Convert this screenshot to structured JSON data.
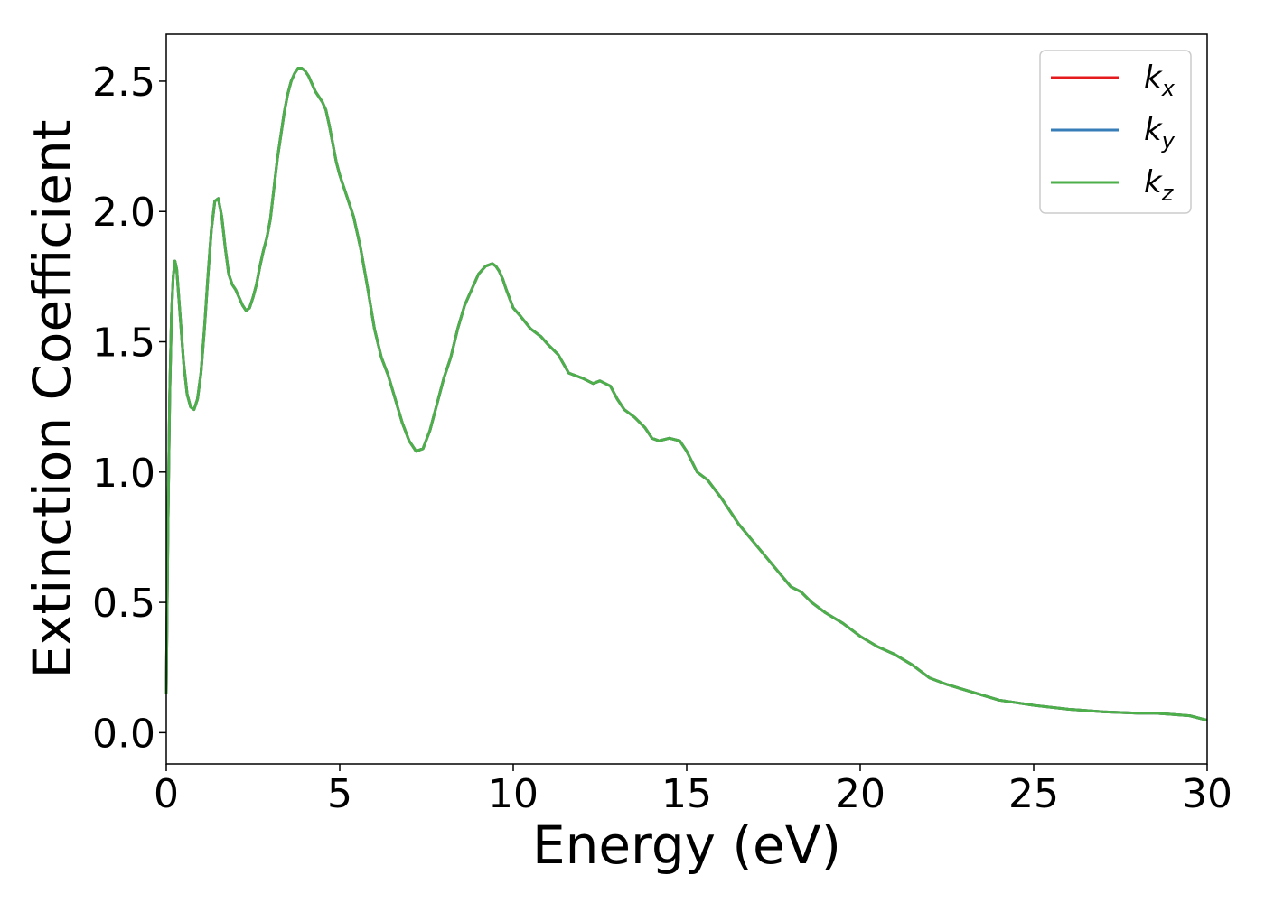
{
  "chart_data": {
    "type": "line",
    "title": "",
    "xlabel": "Energy (eV)",
    "ylabel": "Extinction Coefficient",
    "xlim": [
      0,
      30
    ],
    "ylim": [
      -0.12,
      2.68
    ],
    "xticks": [
      0,
      5,
      10,
      15,
      20,
      25,
      30
    ],
    "xtick_labels": [
      "0",
      "5",
      "10",
      "15",
      "20",
      "25",
      "30"
    ],
    "yticks": [
      0.0,
      0.5,
      1.0,
      1.5,
      2.0,
      2.5
    ],
    "ytick_labels": [
      "0.0",
      "0.5",
      "1.0",
      "1.5",
      "2.0",
      "2.5"
    ],
    "grid": false,
    "legend_position": "top-right",
    "x": [
      0.0,
      0.05,
      0.1,
      0.15,
      0.2,
      0.25,
      0.3,
      0.4,
      0.5,
      0.6,
      0.7,
      0.8,
      0.9,
      1.0,
      1.1,
      1.2,
      1.3,
      1.4,
      1.5,
      1.6,
      1.7,
      1.8,
      1.9,
      2.0,
      2.1,
      2.2,
      2.3,
      2.4,
      2.5,
      2.6,
      2.7,
      2.8,
      2.9,
      3.0,
      3.2,
      3.4,
      3.5,
      3.6,
      3.7,
      3.8,
      3.9,
      4.0,
      4.1,
      4.2,
      4.3,
      4.4,
      4.5,
      4.6,
      4.7,
      4.8,
      4.9,
      5.0,
      5.2,
      5.4,
      5.6,
      5.8,
      6.0,
      6.2,
      6.4,
      6.6,
      6.8,
      7.0,
      7.2,
      7.4,
      7.6,
      7.8,
      8.0,
      8.2,
      8.4,
      8.6,
      8.8,
      9.0,
      9.2,
      9.4,
      9.5,
      9.6,
      9.7,
      9.8,
      10.0,
      10.2,
      10.5,
      10.8,
      11.0,
      11.3,
      11.6,
      11.8,
      12.0,
      12.3,
      12.5,
      12.8,
      13.0,
      13.2,
      13.5,
      13.8,
      14.0,
      14.2,
      14.5,
      14.8,
      15.0,
      15.3,
      15.6,
      16.0,
      16.5,
      17.0,
      17.5,
      18.0,
      18.3,
      18.6,
      19.0,
      19.5,
      20.0,
      20.5,
      21.0,
      21.5,
      22.0,
      22.5,
      23.0,
      24.0,
      25.0,
      26.0,
      27.0,
      28.0,
      28.5,
      29.0,
      29.5,
      30.0
    ],
    "series": [
      {
        "name": "k_x",
        "legend_main": "k",
        "legend_sub": "x",
        "color": "#e41a1c",
        "values": [
          0.15,
          0.8,
          1.3,
          1.6,
          1.75,
          1.81,
          1.78,
          1.6,
          1.42,
          1.3,
          1.25,
          1.24,
          1.28,
          1.38,
          1.55,
          1.75,
          1.93,
          2.04,
          2.05,
          1.98,
          1.86,
          1.76,
          1.72,
          1.7,
          1.67,
          1.64,
          1.62,
          1.63,
          1.67,
          1.72,
          1.79,
          1.85,
          1.9,
          1.97,
          2.2,
          2.38,
          2.45,
          2.5,
          2.53,
          2.55,
          2.55,
          2.54,
          2.52,
          2.49,
          2.46,
          2.44,
          2.42,
          2.39,
          2.33,
          2.26,
          2.19,
          2.14,
          2.06,
          1.98,
          1.86,
          1.71,
          1.55,
          1.44,
          1.37,
          1.28,
          1.19,
          1.12,
          1.08,
          1.09,
          1.16,
          1.26,
          1.36,
          1.44,
          1.55,
          1.64,
          1.7,
          1.76,
          1.79,
          1.8,
          1.79,
          1.77,
          1.74,
          1.7,
          1.63,
          1.6,
          1.55,
          1.52,
          1.49,
          1.45,
          1.38,
          1.37,
          1.36,
          1.34,
          1.35,
          1.33,
          1.28,
          1.24,
          1.21,
          1.17,
          1.13,
          1.12,
          1.13,
          1.12,
          1.08,
          1.0,
          0.97,
          0.9,
          0.8,
          0.72,
          0.64,
          0.56,
          0.54,
          0.5,
          0.46,
          0.42,
          0.37,
          0.33,
          0.3,
          0.26,
          0.21,
          0.185,
          0.165,
          0.125,
          0.105,
          0.09,
          0.08,
          0.075,
          0.075,
          0.07,
          0.065,
          0.048
        ]
      },
      {
        "name": "k_y",
        "legend_main": "k",
        "legend_sub": "y",
        "color": "#377eb8",
        "values": [
          0.15,
          0.8,
          1.3,
          1.6,
          1.75,
          1.81,
          1.78,
          1.6,
          1.42,
          1.3,
          1.25,
          1.24,
          1.28,
          1.38,
          1.55,
          1.75,
          1.93,
          2.04,
          2.05,
          1.98,
          1.86,
          1.76,
          1.72,
          1.7,
          1.67,
          1.64,
          1.62,
          1.63,
          1.67,
          1.72,
          1.79,
          1.85,
          1.9,
          1.97,
          2.2,
          2.38,
          2.45,
          2.5,
          2.53,
          2.55,
          2.55,
          2.54,
          2.52,
          2.49,
          2.46,
          2.44,
          2.42,
          2.39,
          2.33,
          2.26,
          2.19,
          2.14,
          2.06,
          1.98,
          1.86,
          1.71,
          1.55,
          1.44,
          1.37,
          1.28,
          1.19,
          1.12,
          1.08,
          1.09,
          1.16,
          1.26,
          1.36,
          1.44,
          1.55,
          1.64,
          1.7,
          1.76,
          1.79,
          1.8,
          1.79,
          1.77,
          1.74,
          1.7,
          1.63,
          1.6,
          1.55,
          1.52,
          1.49,
          1.45,
          1.38,
          1.37,
          1.36,
          1.34,
          1.35,
          1.33,
          1.28,
          1.24,
          1.21,
          1.17,
          1.13,
          1.12,
          1.13,
          1.12,
          1.08,
          1.0,
          0.97,
          0.9,
          0.8,
          0.72,
          0.64,
          0.56,
          0.54,
          0.5,
          0.46,
          0.42,
          0.37,
          0.33,
          0.3,
          0.26,
          0.21,
          0.185,
          0.165,
          0.125,
          0.105,
          0.09,
          0.08,
          0.075,
          0.075,
          0.07,
          0.065,
          0.048
        ]
      },
      {
        "name": "k_z",
        "legend_main": "k",
        "legend_sub": "z",
        "color": "#4daf4a",
        "values": [
          0.15,
          0.8,
          1.3,
          1.6,
          1.75,
          1.81,
          1.78,
          1.6,
          1.42,
          1.3,
          1.25,
          1.24,
          1.28,
          1.38,
          1.55,
          1.75,
          1.93,
          2.04,
          2.05,
          1.98,
          1.86,
          1.76,
          1.72,
          1.7,
          1.67,
          1.64,
          1.62,
          1.63,
          1.67,
          1.72,
          1.79,
          1.85,
          1.9,
          1.97,
          2.2,
          2.38,
          2.45,
          2.5,
          2.53,
          2.55,
          2.55,
          2.54,
          2.52,
          2.49,
          2.46,
          2.44,
          2.42,
          2.39,
          2.33,
          2.26,
          2.19,
          2.14,
          2.06,
          1.98,
          1.86,
          1.71,
          1.55,
          1.44,
          1.37,
          1.28,
          1.19,
          1.12,
          1.08,
          1.09,
          1.16,
          1.26,
          1.36,
          1.44,
          1.55,
          1.64,
          1.7,
          1.76,
          1.79,
          1.8,
          1.79,
          1.77,
          1.74,
          1.7,
          1.63,
          1.6,
          1.55,
          1.52,
          1.49,
          1.45,
          1.38,
          1.37,
          1.36,
          1.34,
          1.35,
          1.33,
          1.28,
          1.24,
          1.21,
          1.17,
          1.13,
          1.12,
          1.13,
          1.12,
          1.08,
          1.0,
          0.97,
          0.9,
          0.8,
          0.72,
          0.64,
          0.56,
          0.54,
          0.5,
          0.46,
          0.42,
          0.37,
          0.33,
          0.3,
          0.26,
          0.21,
          0.185,
          0.165,
          0.125,
          0.105,
          0.09,
          0.08,
          0.075,
          0.075,
          0.07,
          0.065,
          0.048
        ]
      }
    ]
  }
}
